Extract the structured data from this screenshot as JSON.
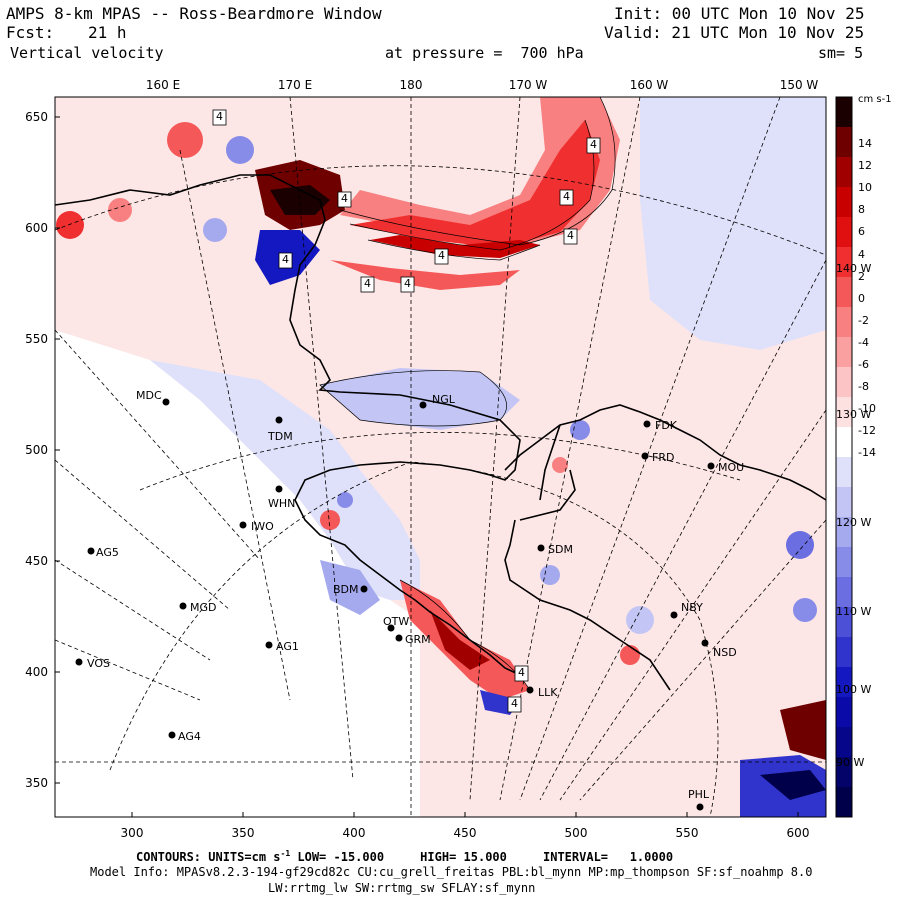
{
  "header": {
    "title": "AMPS 8-km MPAS -- Ross-Beardmore Window",
    "init": "Init: 00 UTC Mon 10 Nov 25",
    "fcst_label": "Fcst:",
    "fcst_value": "21 h",
    "valid": "Valid: 21 UTC Mon 10 Nov 25",
    "field": "Vertical velocity",
    "level": "at pressure =  700 hPa",
    "smoothing": "sm= 5"
  },
  "axes": {
    "y_ticks": [
      "650",
      "600",
      "550",
      "500",
      "450",
      "400",
      "350"
    ],
    "x_ticks": [
      "300",
      "350",
      "400",
      "450",
      "500",
      "550",
      "600"
    ],
    "top_lon": [
      "160 E",
      "170 E",
      "180",
      "170 W",
      "160 W",
      "150 W"
    ],
    "right_lon": [
      "140 W",
      "130 W",
      "120 W",
      "110 W",
      "100 W",
      "90 W"
    ]
  },
  "colorbar": {
    "units": "cm s-1",
    "labels": [
      "14",
      "12",
      "10",
      "8",
      "6",
      "4",
      "2",
      "0",
      "-2",
      "-4",
      "-6",
      "-8",
      "-10",
      "-12",
      "-14"
    ],
    "colors": [
      "#1a0000",
      "#6e0000",
      "#a00000",
      "#c80000",
      "#e01010",
      "#f03030",
      "#f55858",
      "#f88080",
      "#faa0a0",
      "#fcc4c4",
      "#fde0e0",
      "#ffffff",
      "#dfe1fa",
      "#c3c6f4",
      "#a5a9ee",
      "#878ce8",
      "#6a6ee0",
      "#4c50d6",
      "#3034cc",
      "#1418c0",
      "#0a0aa8",
      "#06068a",
      "#03036a",
      "#00004a"
    ]
  },
  "stations": [
    {
      "code": "MDC"
    },
    {
      "code": "TDM"
    },
    {
      "code": "NGL"
    },
    {
      "code": "FDK"
    },
    {
      "code": "FRD"
    },
    {
      "code": "MOU"
    },
    {
      "code": "WHN"
    },
    {
      "code": "IWO"
    },
    {
      "code": "AG5"
    },
    {
      "code": "SDM"
    },
    {
      "code": "NBY"
    },
    {
      "code": "MGD"
    },
    {
      "code": "BDM"
    },
    {
      "code": "OTW"
    },
    {
      "code": "GRM"
    },
    {
      "code": "AG1"
    },
    {
      "code": "NSD"
    },
    {
      "code": "VOS"
    },
    {
      "code": "LLK"
    },
    {
      "code": "AG4"
    },
    {
      "code": "PHL"
    }
  ],
  "contour_labels": [
    "4",
    "4",
    "4",
    "4",
    "4",
    "4",
    "4",
    "4",
    "4",
    "4",
    "4"
  ],
  "footer": {
    "contours": "CONTOURS: UNITS=cm s",
    "contours_exp": "-1",
    "contours_rest": " LOW= -15.000     HIGH= 15.000     INTERVAL=   1.0000",
    "model_info": "Model Info: MPASv8.2.3-194-gf29cd82c CU:cu_grell_freitas PBL:bl_mynn MP:mp_thompson SF:sf_noahmp 8.0",
    "physics": "LW:rrtmg_lw SW:rrtmg_sw SFLAY:sf_mynn"
  }
}
